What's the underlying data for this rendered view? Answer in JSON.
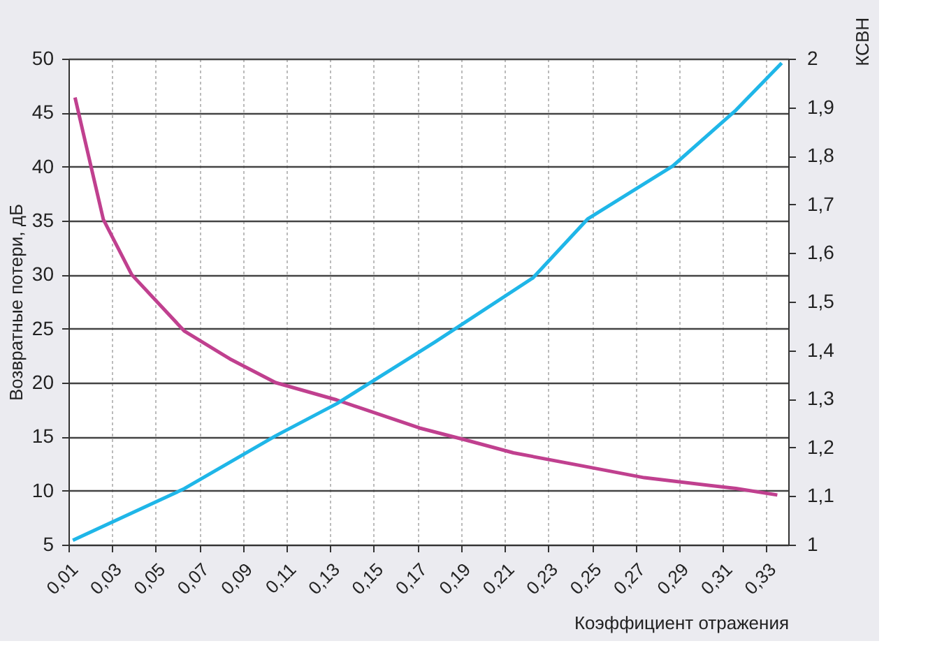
{
  "chart_data": {
    "type": "line",
    "xlabel": "Коэффициент отражения",
    "ylabel": "Возвратные потери, дБ",
    "y2label": "КСВН",
    "xlim": [
      0.01,
      0.34
    ],
    "xticks": [
      {
        "value": 0.01,
        "label": "0,01"
      },
      {
        "value": 0.03,
        "label": "0,03"
      },
      {
        "value": 0.05,
        "label": "0,05"
      },
      {
        "value": 0.07,
        "label": "0,07"
      },
      {
        "value": 0.09,
        "label": "0,09"
      },
      {
        "value": 0.11,
        "label": "0,11"
      },
      {
        "value": 0.13,
        "label": "0,13"
      },
      {
        "value": 0.15,
        "label": "0,15"
      },
      {
        "value": 0.17,
        "label": "0,17"
      },
      {
        "value": 0.19,
        "label": "0,19"
      },
      {
        "value": 0.21,
        "label": "0,21"
      },
      {
        "value": 0.23,
        "label": "0,23"
      },
      {
        "value": 0.25,
        "label": "0,25"
      },
      {
        "value": 0.27,
        "label": "0,27"
      },
      {
        "value": 0.29,
        "label": "0,29"
      },
      {
        "value": 0.31,
        "label": "0,31"
      },
      {
        "value": 0.33,
        "label": "0,33"
      }
    ],
    "ylim": [
      5,
      50
    ],
    "yticks": [
      5,
      10,
      15,
      20,
      25,
      30,
      35,
      40,
      45,
      50
    ],
    "y2lim": [
      1,
      2
    ],
    "y2ticks": [
      {
        "value": 1,
        "label": "1"
      },
      {
        "value": 1.1,
        "label": "1,1"
      },
      {
        "value": 1.2,
        "label": "1,2"
      },
      {
        "value": 1.3,
        "label": "1,3"
      },
      {
        "value": 1.4,
        "label": "1,4"
      },
      {
        "value": 1.5,
        "label": "1,5"
      },
      {
        "value": 1.6,
        "label": "1,6"
      },
      {
        "value": 1.7,
        "label": "1,7"
      },
      {
        "value": 1.8,
        "label": "1,8"
      },
      {
        "value": 1.9,
        "label": "1,9"
      },
      {
        "value": 2,
        "label": "2"
      }
    ],
    "grid": true,
    "legend": false,
    "marker": "none",
    "line_style": "solid",
    "series": [
      {
        "color": "#c0408f",
        "x": [
          0.013,
          0.02,
          0.026,
          0.039,
          0.063,
          0.084,
          0.105,
          0.133,
          0.171,
          0.192,
          0.214,
          0.248,
          0.274,
          0.316,
          0.335
        ],
        "values": [
          46.4,
          40.3,
          35.1,
          30,
          24.8,
          22.2,
          20.0,
          18.4,
          15.8,
          14.7,
          13.5,
          12.2,
          11.2,
          10.2,
          9.6
        ]
      },
      {
        "color": "#1fb6e8",
        "axis": "y2",
        "x": [
          0.012,
          0.063,
          0.105,
          0.133,
          0.171,
          0.178,
          0.223,
          0.248,
          0.287,
          0.316,
          0.337
        ],
        "values": [
          1.009,
          1.115,
          1.224,
          1.29,
          1.397,
          1.417,
          1.549,
          1.67,
          1.779,
          1.894,
          1.991
        ]
      }
    ]
  }
}
